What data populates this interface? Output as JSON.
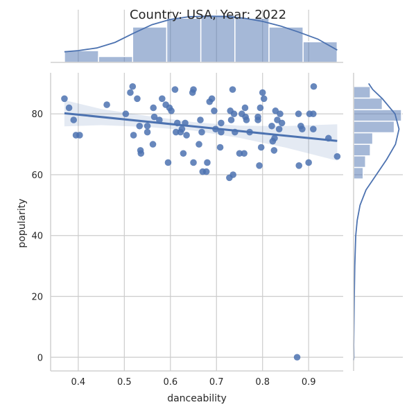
{
  "chart_data": {
    "type": "scatter",
    "title": "Country: USA, Year: 2022",
    "xlabel": "danceability",
    "ylabel": "popularity",
    "xlim": [
      0.34,
      0.975
    ],
    "ylim": [
      -4.5,
      93.5
    ],
    "xticks": [
      0.4,
      0.5,
      0.6,
      0.7,
      0.8,
      0.9
    ],
    "xtick_labels": [
      "0.4",
      "0.5",
      "0.6",
      "0.7",
      "0.8",
      "0.9"
    ],
    "yticks": [
      0,
      20,
      40,
      60,
      80
    ],
    "ytick_labels": [
      "0",
      "20",
      "40",
      "60",
      "80"
    ],
    "grid": true,
    "marker_color": "#4c72b0",
    "series": [
      {
        "points": [
          [
            0.37,
            85
          ],
          [
            0.38,
            82
          ],
          [
            0.39,
            78
          ],
          [
            0.395,
            73
          ],
          [
            0.403,
            73
          ],
          [
            0.462,
            83
          ],
          [
            0.503,
            80
          ],
          [
            0.513,
            87
          ],
          [
            0.518,
            89
          ],
          [
            0.52,
            73
          ],
          [
            0.528,
            85
          ],
          [
            0.533,
            76
          ],
          [
            0.535,
            68
          ],
          [
            0.536,
            67
          ],
          [
            0.55,
            76
          ],
          [
            0.55,
            74
          ],
          [
            0.562,
            70
          ],
          [
            0.563,
            82
          ],
          [
            0.565,
            79
          ],
          [
            0.576,
            78
          ],
          [
            0.582,
            85
          ],
          [
            0.59,
            83
          ],
          [
            0.595,
            64
          ],
          [
            0.598,
            82
          ],
          [
            0.602,
            81
          ],
          [
            0.61,
            88
          ],
          [
            0.612,
            74
          ],
          [
            0.615,
            77
          ],
          [
            0.622,
            74
          ],
          [
            0.625,
            75
          ],
          [
            0.628,
            67
          ],
          [
            0.632,
            77
          ],
          [
            0.635,
            73
          ],
          [
            0.648,
            87
          ],
          [
            0.65,
            88
          ],
          [
            0.65,
            64
          ],
          [
            0.662,
            70
          ],
          [
            0.665,
            78
          ],
          [
            0.668,
            74
          ],
          [
            0.67,
            61
          ],
          [
            0.678,
            61
          ],
          [
            0.68,
            64
          ],
          [
            0.685,
            84
          ],
          [
            0.69,
            85
          ],
          [
            0.695,
            81
          ],
          [
            0.698,
            75
          ],
          [
            0.708,
            69
          ],
          [
            0.71,
            77
          ],
          [
            0.71,
            74
          ],
          [
            0.728,
            59
          ],
          [
            0.73,
            81
          ],
          [
            0.732,
            78
          ],
          [
            0.735,
            88
          ],
          [
            0.736,
            60
          ],
          [
            0.738,
            80
          ],
          [
            0.74,
            74
          ],
          [
            0.75,
            67
          ],
          [
            0.755,
            80
          ],
          [
            0.76,
            67
          ],
          [
            0.762,
            82
          ],
          [
            0.763,
            79
          ],
          [
            0.765,
            78
          ],
          [
            0.772,
            74
          ],
          [
            0.79,
            78
          ],
          [
            0.79,
            79
          ],
          [
            0.793,
            63
          ],
          [
            0.795,
            82
          ],
          [
            0.797,
            69
          ],
          [
            0.8,
            87
          ],
          [
            0.803,
            85
          ],
          [
            0.82,
            76
          ],
          [
            0.822,
            71
          ],
          [
            0.825,
            68
          ],
          [
            0.826,
            72
          ],
          [
            0.828,
            81
          ],
          [
            0.832,
            78
          ],
          [
            0.836,
            75
          ],
          [
            0.838,
            80
          ],
          [
            0.842,
            77
          ],
          [
            0.875,
            0
          ],
          [
            0.878,
            80
          ],
          [
            0.879,
            63
          ],
          [
            0.883,
            76
          ],
          [
            0.886,
            75
          ],
          [
            0.9,
            64
          ],
          [
            0.902,
            80
          ],
          [
            0.91,
            80
          ],
          [
            0.91,
            75
          ],
          [
            0.911,
            89
          ],
          [
            0.943,
            72
          ],
          [
            0.962,
            66
          ]
        ]
      }
    ],
    "regression": {
      "x_range": [
        0.37,
        0.962
      ],
      "line": [
        [
          0.37,
          80.2
        ],
        [
          0.962,
          71.1
        ]
      ],
      "ci_upper": [
        [
          0.37,
          84.5
        ],
        [
          0.45,
          81.6
        ],
        [
          0.55,
          79.3
        ],
        [
          0.65,
          77.3
        ],
        [
          0.75,
          76.1
        ],
        [
          0.85,
          76.0
        ],
        [
          0.962,
          76.6
        ]
      ],
      "ci_lower": [
        [
          0.37,
          75.9
        ],
        [
          0.45,
          76.3
        ],
        [
          0.55,
          75.7
        ],
        [
          0.65,
          74.5
        ],
        [
          0.75,
          72.1
        ],
        [
          0.85,
          68.9
        ],
        [
          0.962,
          64.6
        ]
      ]
    },
    "marginal_x": {
      "type": "histogram+kde",
      "bins": [
        [
          0.37,
          0.444
        ],
        [
          0.444,
          0.518
        ],
        [
          0.518,
          0.592
        ],
        [
          0.592,
          0.666
        ],
        [
          0.666,
          0.74
        ],
        [
          0.74,
          0.814
        ],
        [
          0.814,
          0.888
        ],
        [
          0.888,
          0.962
        ]
      ],
      "counts": [
        4,
        2,
        12,
        15,
        16,
        15,
        12,
        7
      ],
      "kde": [
        [
          0.37,
          3.6
        ],
        [
          0.4,
          4.0
        ],
        [
          0.44,
          4.9
        ],
        [
          0.48,
          6.8
        ],
        [
          0.52,
          9.9
        ],
        [
          0.56,
          12.8
        ],
        [
          0.6,
          14.6
        ],
        [
          0.64,
          15.5
        ],
        [
          0.68,
          15.7
        ],
        [
          0.72,
          15.6
        ],
        [
          0.76,
          15.0
        ],
        [
          0.8,
          13.9
        ],
        [
          0.84,
          12.3
        ],
        [
          0.88,
          10.2
        ],
        [
          0.92,
          7.9
        ],
        [
          0.962,
          4.2
        ]
      ]
    },
    "marginal_y": {
      "type": "histogram+kde",
      "bins": [
        [
          58.6,
          62.4
        ],
        [
          62.4,
          66.2
        ],
        [
          66.2,
          70.0
        ],
        [
          70.0,
          73.8
        ],
        [
          73.8,
          77.6
        ],
        [
          77.6,
          81.4
        ],
        [
          81.4,
          85.2
        ],
        [
          85.2,
          89.0
        ]
      ],
      "counts": [
        4,
        5,
        7,
        8,
        17,
        20,
        12,
        7
      ],
      "kde": [
        [
          -1,
          0.0
        ],
        [
          0,
          0.12
        ],
        [
          4,
          0.05
        ],
        [
          10,
          0.15
        ],
        [
          20,
          0.3
        ],
        [
          30,
          0.5
        ],
        [
          40,
          0.9
        ],
        [
          45,
          1.5
        ],
        [
          50,
          2.7
        ],
        [
          55,
          5.2
        ],
        [
          60,
          9.5
        ],
        [
          65,
          13.8
        ],
        [
          70,
          17.5
        ],
        [
          75,
          19.0
        ],
        [
          80,
          17.3
        ],
        [
          85,
          12.0
        ],
        [
          88,
          8.0
        ],
        [
          90,
          6.3
        ]
      ]
    }
  }
}
